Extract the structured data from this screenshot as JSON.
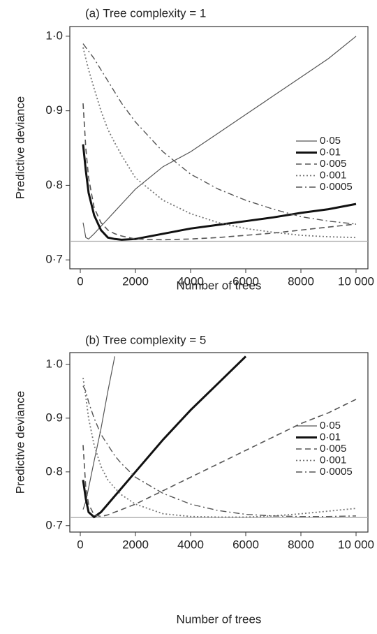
{
  "chart_data": [
    {
      "type": "line",
      "title": "(a) Tree complexity = 1",
      "xlabel": "Number of trees",
      "ylabel": "Predictive deviance",
      "x": [
        100,
        200,
        300,
        500,
        750,
        1000,
        1250,
        1500,
        2000,
        3000,
        4000,
        5000,
        6000,
        7000,
        8000,
        9000,
        10000
      ],
      "series": [
        {
          "name": "0·05",
          "color": "#555555",
          "linestyle": "solid",
          "linewidth": 1.2,
          "values": [
            0.75,
            0.73,
            0.728,
            0.735,
            0.745,
            0.755,
            0.765,
            0.775,
            0.795,
            0.825,
            0.845,
            0.87,
            0.895,
            0.92,
            0.945,
            0.97,
            1.0
          ]
        },
        {
          "name": "0·01",
          "color": "#111111",
          "linestyle": "solid",
          "linewidth": 3,
          "values": [
            0.855,
            0.82,
            0.79,
            0.76,
            0.74,
            0.73,
            0.728,
            0.727,
            0.728,
            0.735,
            0.742,
            0.747,
            0.752,
            0.757,
            0.763,
            0.768,
            0.775
          ]
        },
        {
          "name": "0·005",
          "color": "#555555",
          "linestyle": "dashed",
          "linewidth": 1.6,
          "values": [
            0.91,
            0.85,
            0.81,
            0.77,
            0.75,
            0.74,
            0.735,
            0.732,
            0.728,
            0.727,
            0.728,
            0.73,
            0.733,
            0.736,
            0.74,
            0.744,
            0.748
          ]
        },
        {
          "name": "0·001",
          "color": "#777777",
          "linestyle": "dotted",
          "linewidth": 1.8,
          "values": [
            0.985,
            0.97,
            0.955,
            0.93,
            0.9,
            0.875,
            0.857,
            0.84,
            0.81,
            0.78,
            0.762,
            0.75,
            0.742,
            0.737,
            0.733,
            0.731,
            0.73
          ]
        },
        {
          "name": "0·0005",
          "color": "#555555",
          "linestyle": "dashdot",
          "linewidth": 1.4,
          "values": [
            0.99,
            0.985,
            0.98,
            0.97,
            0.955,
            0.94,
            0.925,
            0.91,
            0.885,
            0.845,
            0.815,
            0.795,
            0.78,
            0.768,
            0.758,
            0.752,
            0.748
          ]
        }
      ],
      "reference_line": 0.725,
      "xlim": [
        -380,
        10430
      ],
      "ylim": [
        0.688,
        1.013
      ],
      "xticks": [
        0,
        2000,
        4000,
        6000,
        8000,
        {
          "value": 10000,
          "label": "10 000"
        }
      ],
      "yticks": [
        {
          "value": 0.7,
          "label": "0·7"
        },
        {
          "value": 0.8,
          "label": "0·8"
        },
        {
          "value": 0.9,
          "label": "0·9"
        },
        {
          "value": 1.0,
          "label": "1·0"
        }
      ],
      "legend": "right"
    },
    {
      "type": "line",
      "title": "(b) Tree complexity = 5",
      "xlabel": "Number of trees",
      "ylabel": "Predictive deviance",
      "x": [
        100,
        200,
        300,
        500,
        750,
        1000,
        1250,
        1500,
        2000,
        3000,
        4000,
        5000,
        6000,
        7000,
        8000,
        9000,
        10000
      ],
      "series": [
        {
          "name": "0·05",
          "color": "#555555",
          "linestyle": "solid",
          "linewidth": 1.2,
          "values": [
            0.73,
            0.745,
            0.77,
            0.82,
            0.88,
            0.95,
            1.015,
            null,
            null,
            null,
            null,
            null,
            null,
            null,
            null,
            null,
            null
          ]
        },
        {
          "name": "0·01",
          "color": "#111111",
          "linestyle": "solid",
          "linewidth": 3,
          "values": [
            0.785,
            0.75,
            0.725,
            0.716,
            0.725,
            0.74,
            0.755,
            0.77,
            0.8,
            0.86,
            0.915,
            0.965,
            1.015,
            null,
            null,
            null,
            null
          ]
        },
        {
          "name": "0·005",
          "color": "#555555",
          "linestyle": "dashed",
          "linewidth": 1.6,
          "values": [
            0.85,
            0.77,
            0.74,
            0.72,
            0.717,
            0.72,
            0.725,
            0.73,
            0.74,
            0.765,
            0.79,
            0.815,
            0.84,
            0.865,
            0.89,
            0.91,
            0.935
          ]
        },
        {
          "name": "0·001",
          "color": "#777777",
          "linestyle": "dotted",
          "linewidth": 1.8,
          "values": [
            0.975,
            0.94,
            0.9,
            0.85,
            0.81,
            0.785,
            0.77,
            0.757,
            0.74,
            0.722,
            0.717,
            0.716,
            0.716,
            0.718,
            0.722,
            0.727,
            0.732
          ]
        },
        {
          "name": "0·0005",
          "color": "#555555",
          "linestyle": "dashdot",
          "linewidth": 1.4,
          "values": [
            0.96,
            0.95,
            0.93,
            0.9,
            0.87,
            0.85,
            0.83,
            0.815,
            0.79,
            0.76,
            0.74,
            0.728,
            0.721,
            0.718,
            0.717,
            0.717,
            0.718
          ]
        }
      ],
      "reference_line": 0.715,
      "xlim": [
        -380,
        10430
      ],
      "ylim": [
        0.688,
        1.022
      ],
      "xticks": [
        0,
        2000,
        4000,
        6000,
        8000,
        {
          "value": 10000,
          "label": "10 000"
        }
      ],
      "yticks": [
        {
          "value": 0.7,
          "label": "0·7"
        },
        {
          "value": 0.8,
          "label": "0·8"
        },
        {
          "value": 0.9,
          "label": "0·9"
        },
        {
          "value": 1.0,
          "label": "1·0"
        }
      ],
      "legend": "right"
    }
  ]
}
